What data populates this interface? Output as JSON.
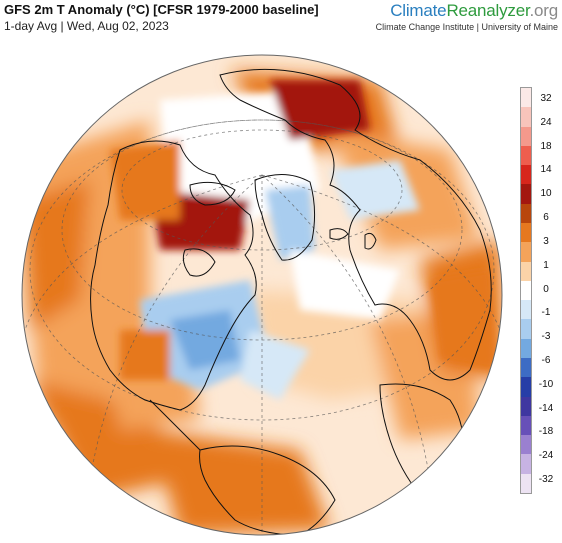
{
  "header": {
    "title": "GFS 2m T Anomaly (°C) [CFSR 1979-2000 baseline]",
    "subtitle": "1-day Avg | Wed, Aug 02, 2023"
  },
  "brand": {
    "part1": "Climate",
    "part2": "Reanalyzer",
    "part3": ".org",
    "tagline": "Climate Change Institute | University of Maine"
  },
  "colorbar": {
    "ticks": [
      "32",
      "24",
      "18",
      "14",
      "10",
      "6",
      "3",
      "1",
      "0",
      "-1",
      "-3",
      "-6",
      "-10",
      "-14",
      "-18",
      "-24",
      "-32"
    ],
    "colors": [
      "#fbe9e7",
      "#f8c4bb",
      "#f4998c",
      "#ee5e4e",
      "#d7261c",
      "#a3170f",
      "#b8460c",
      "#e6781f",
      "#f4a35a",
      "#fbd3a8",
      "#ffffff",
      "#d6e8f7",
      "#a9cdef",
      "#73a9e0",
      "#3d6cc4",
      "#263ea7",
      "#3f37a0",
      "#6750b8",
      "#9a80d0",
      "#c7b3e3",
      "#ede3f3"
    ]
  },
  "map": {
    "projection": "orthographic",
    "colors": {
      "ocean_bg": "#fde8d4",
      "warm_light": "#fbd3a8",
      "warm_mid": "#f4a35a",
      "warm_strong": "#e6781f",
      "warm_deep": "#a3170f",
      "neutral": "#ffffff",
      "cool_light": "#d6e8f7",
      "cool_mid": "#a9cdef",
      "cool_strong": "#73a9e0",
      "land_outline": "#111111",
      "graticule": "#555555"
    }
  }
}
